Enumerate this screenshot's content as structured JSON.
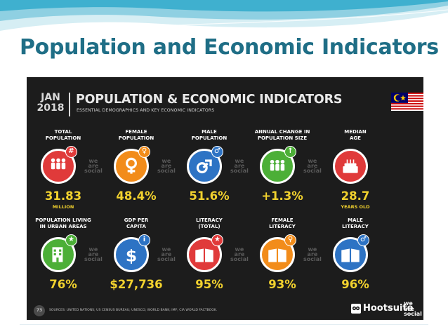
{
  "slide": {
    "title": "Population and Economic Indicators"
  },
  "infographic": {
    "date_month": "JAN",
    "date_year": "2018",
    "title": "POPULATION & ECONOMIC INDICATORS",
    "subtitle": "ESSENTIAL DEMOGRAPHICS AND KEY ECONOMIC INDICATORS",
    "watermark": [
      "we",
      "are",
      "social"
    ],
    "row1": [
      {
        "label": [
          "TOTAL",
          "POPULATION"
        ],
        "value": "31.83",
        "unit": "MILLION",
        "color": "#e03a3a",
        "icon": "people-icon",
        "badge": "#"
      },
      {
        "label": [
          "FEMALE",
          "POPULATION"
        ],
        "value": "48.4%",
        "unit": "",
        "color": "#f28c1a",
        "icon": "female-icon",
        "badge": "♀"
      },
      {
        "label": [
          "MALE",
          "POPULATION"
        ],
        "value": "51.6%",
        "unit": "",
        "color": "#2d73c4",
        "icon": "male-icon",
        "badge": "♂"
      },
      {
        "label": [
          "ANNUAL CHANGE IN",
          "POPULATION SIZE"
        ],
        "value": "+1.3%",
        "unit": "",
        "color": "#4caf37",
        "icon": "population-growth-icon",
        "badge": "↑"
      },
      {
        "label": [
          "MEDIAN",
          "AGE"
        ],
        "value": "28.7",
        "unit": "YEARS OLD",
        "color": "#e03a3a",
        "icon": "birthday-cake-icon",
        "badge": ""
      }
    ],
    "row2": [
      {
        "label": [
          "POPULATION LIVING",
          "IN URBAN AREAS"
        ],
        "value": "76%",
        "unit": "",
        "color": "#4caf37",
        "icon": "city-building-icon",
        "badge": "★"
      },
      {
        "label": [
          "GDP PER",
          "CAPITA"
        ],
        "value": "$27,736",
        "unit": "",
        "color": "#2d73c4",
        "icon": "dollar-icon",
        "badge": "i"
      },
      {
        "label": [
          "LITERACY",
          "(TOTAL)"
        ],
        "value": "95%",
        "unit": "",
        "color": "#e03a3a",
        "icon": "book-icon",
        "badge": "★"
      },
      {
        "label": [
          "FEMALE",
          "LITERACY"
        ],
        "value": "93%",
        "unit": "",
        "color": "#f28c1a",
        "icon": "book-female-icon",
        "badge": "♀"
      },
      {
        "label": [
          "MALE",
          "LITERACY"
        ],
        "value": "96%",
        "unit": "",
        "color": "#2d73c4",
        "icon": "book-male-icon",
        "badge": "♂"
      }
    ],
    "footer": {
      "page": "73",
      "sources": "SOURCES: UNITED NATIONS; US CENSUS BUREAU; UNESCO; WORLD BANK; IMF; CIA WORLD FACTBOOK.",
      "brand1": "Hootsuite",
      "brand2": [
        "we",
        "are",
        "social"
      ]
    }
  }
}
